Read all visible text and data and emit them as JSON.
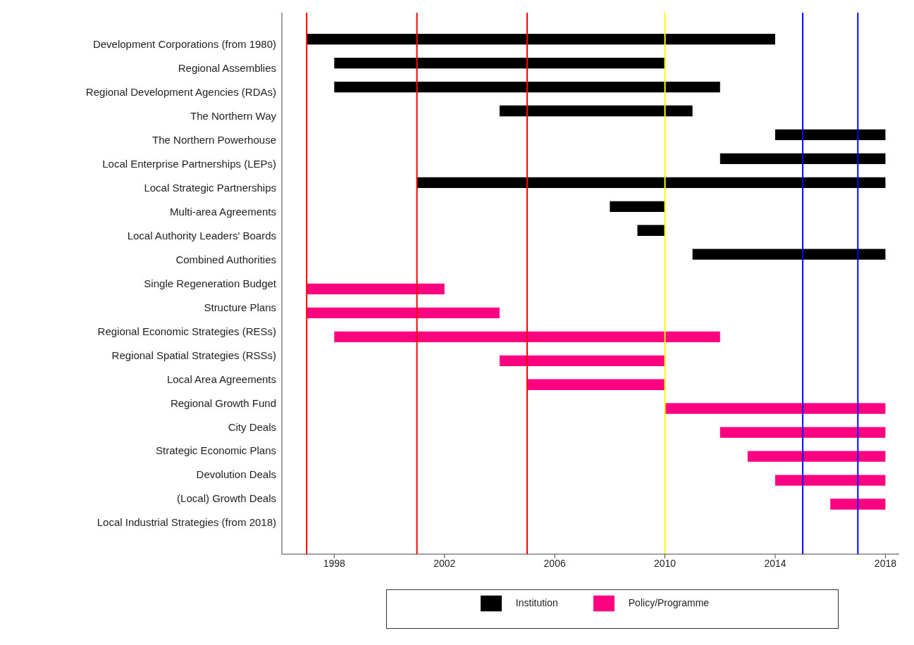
{
  "chart_data": {
    "type": "bar",
    "orientation": "horizontal",
    "categories": [
      "Development Corporations (from 1980)",
      "Regional Assemblies",
      "Regional Development Agencies (RDAs)",
      "The Northern Way",
      "The Northern Powerhouse",
      "Local Enterprise Partnerships (LEPs)",
      "Local Strategic Partnerships",
      "Multi-area Agreements",
      "Local Authority Leaders' Boards",
      "Combined Authorities",
      "Single Regeneration Budget",
      "Structure Plans",
      "Regional Economic Strategies (RESs)",
      "Regional Spatial Strategies (RSSs)",
      "Local Area Agreements",
      "Regional Growth Fund",
      "City Deals",
      "Strategic Economic Plans",
      "Devolution Deals",
      "(Local) Growth Deals",
      "Local Industrial Strategies (from 2018)"
    ],
    "series": [
      {
        "name": "Institution",
        "color": "#000000",
        "base": [
          1997,
          1998,
          1998,
          2004,
          2014,
          2012,
          2001,
          2008,
          2009,
          2011,
          null,
          null,
          null,
          null,
          null,
          null,
          null,
          null,
          null,
          null,
          null
        ],
        "values": [
          17,
          12,
          14,
          7,
          4,
          6,
          17,
          2,
          1,
          7,
          null,
          null,
          null,
          null,
          null,
          null,
          null,
          null,
          null,
          null,
          null
        ]
      },
      {
        "name": "Policy/Programme",
        "color": "#ff0080",
        "base": [
          null,
          null,
          null,
          null,
          null,
          null,
          null,
          null,
          null,
          null,
          1997,
          1997,
          1998,
          2004,
          2005,
          2010,
          2012,
          2013,
          2014,
          2016,
          null
        ],
        "values": [
          null,
          null,
          null,
          null,
          null,
          null,
          null,
          null,
          null,
          null,
          5,
          7,
          14,
          6,
          5,
          8,
          6,
          5,
          4,
          2,
          null
        ]
      }
    ],
    "xlim": [
      1996.1,
      2018.5
    ],
    "xticks": [
      1998,
      2002,
      2006,
      2010,
      2014,
      2018
    ],
    "ref_lines": [
      {
        "axis": "x",
        "value": 1997,
        "color": "#ff0000"
      },
      {
        "axis": "x",
        "value": 2001,
        "color": "#ff0000"
      },
      {
        "axis": "x",
        "value": 2005,
        "color": "#ff0000"
      },
      {
        "axis": "x",
        "value": 2010,
        "color": "#ffff00"
      },
      {
        "axis": "x",
        "value": 2015,
        "color": "#0000ff"
      },
      {
        "axis": "x",
        "value": 2017,
        "color": "#0000ff"
      }
    ],
    "grid": false,
    "legend": "bottom"
  }
}
